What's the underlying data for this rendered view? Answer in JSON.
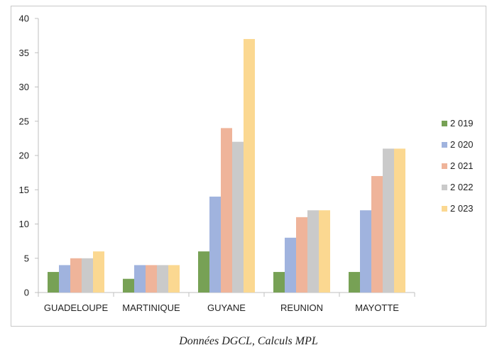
{
  "caption": "Données DGCL, Calculs MPL",
  "chart_data": {
    "type": "bar",
    "title": "",
    "xlabel": "",
    "ylabel": "",
    "ylim": [
      0,
      40
    ],
    "yticks": [
      0,
      5,
      10,
      15,
      20,
      25,
      30,
      35,
      40
    ],
    "grid": false,
    "legend_position": "right",
    "categories": [
      "GUADELOUPE",
      "MARTINIQUE",
      "GUYANE",
      "REUNION",
      "MAYOTTE"
    ],
    "series": [
      {
        "name": "2 019",
        "color": "#77a155",
        "values": [
          3,
          2,
          6,
          3,
          3
        ]
      },
      {
        "name": "2 020",
        "color": "#a0b3de",
        "values": [
          4,
          4,
          14,
          8,
          12
        ]
      },
      {
        "name": "2 021",
        "color": "#efb49a",
        "values": [
          5,
          4,
          24,
          11,
          17
        ]
      },
      {
        "name": "2 022",
        "color": "#cacaca",
        "values": [
          5,
          4,
          22,
          12,
          21
        ]
      },
      {
        "name": "2 023",
        "color": "#fbd891",
        "values": [
          6,
          4,
          37,
          12,
          21
        ]
      }
    ]
  }
}
